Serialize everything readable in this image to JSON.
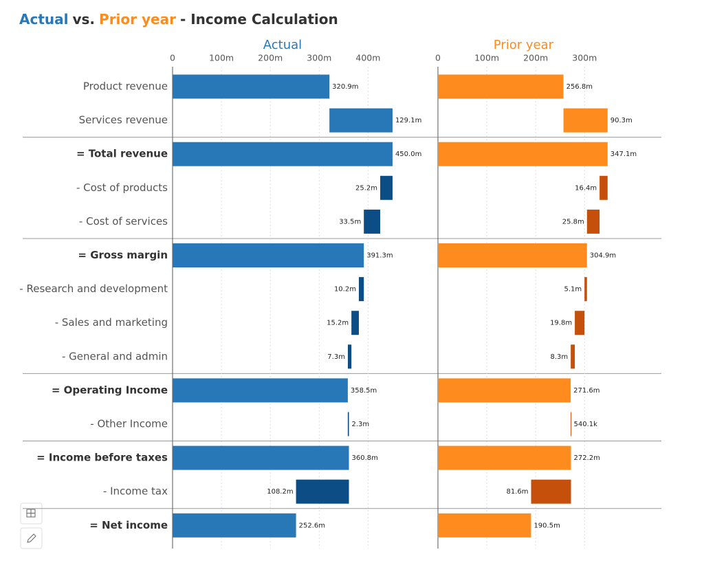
{
  "chart_data": {
    "type": "waterfall",
    "title": [
      "Actual",
      "vs.",
      "Prior year",
      "- Income Calculation"
    ],
    "categories": [
      "Product revenue",
      "Services revenue",
      "= Total revenue",
      "- Cost of products",
      "- Cost of services",
      "= Gross margin",
      "- Research and development",
      "- Sales and marketing",
      "- General and admin",
      "= Operating Income",
      "- Other Income",
      "= Income before taxes",
      "- Income tax",
      "= Net income"
    ],
    "series": [
      {
        "name": "Actual",
        "color": "#2878b8",
        "cost_color": "#0d4d85",
        "values": [
          320.9,
          129.1,
          450.0,
          -25.2,
          -33.5,
          391.3,
          -10.2,
          -15.2,
          -7.3,
          358.5,
          2.3,
          360.8,
          -108.2,
          252.6
        ],
        "value_labels": [
          "320.9m",
          "129.1m",
          "450.0m",
          "25.2m",
          "33.5m",
          "391.3m",
          "10.2m",
          "15.2m",
          "7.3m",
          "358.5m",
          "2.3m",
          "360.8m",
          "108.2m",
          "252.6m"
        ],
        "xlim": [
          0,
          450
        ],
        "xticks": [
          0,
          {
            "value": 100,
            "label": "100m"
          },
          {
            "value": 200,
            "label": "200m"
          },
          {
            "value": 300,
            "label": "300m"
          },
          {
            "value": 400,
            "label": "400m"
          }
        ]
      },
      {
        "name": "Prior year",
        "color": "#fd8b1e",
        "cost_color": "#c4500b",
        "values": [
          256.8,
          90.3,
          347.1,
          -16.4,
          -25.8,
          304.9,
          -5.1,
          -19.8,
          -8.3,
          271.6,
          0.5401,
          272.2,
          -81.6,
          190.5
        ],
        "value_labels": [
          "256.8m",
          "90.3m",
          "347.1m",
          "16.4m",
          "25.8m",
          "304.9m",
          "5.1m",
          "19.8m",
          "8.3m",
          "271.6m",
          "540.1k",
          "272.2m",
          "81.6m",
          "190.5m"
        ],
        "xlim": [
          0,
          350
        ],
        "xticks": [
          0,
          {
            "value": 100,
            "label": "100m"
          },
          {
            "value": 200,
            "label": "200m"
          },
          {
            "value": 300,
            "label": "300m"
          }
        ]
      }
    ]
  }
}
